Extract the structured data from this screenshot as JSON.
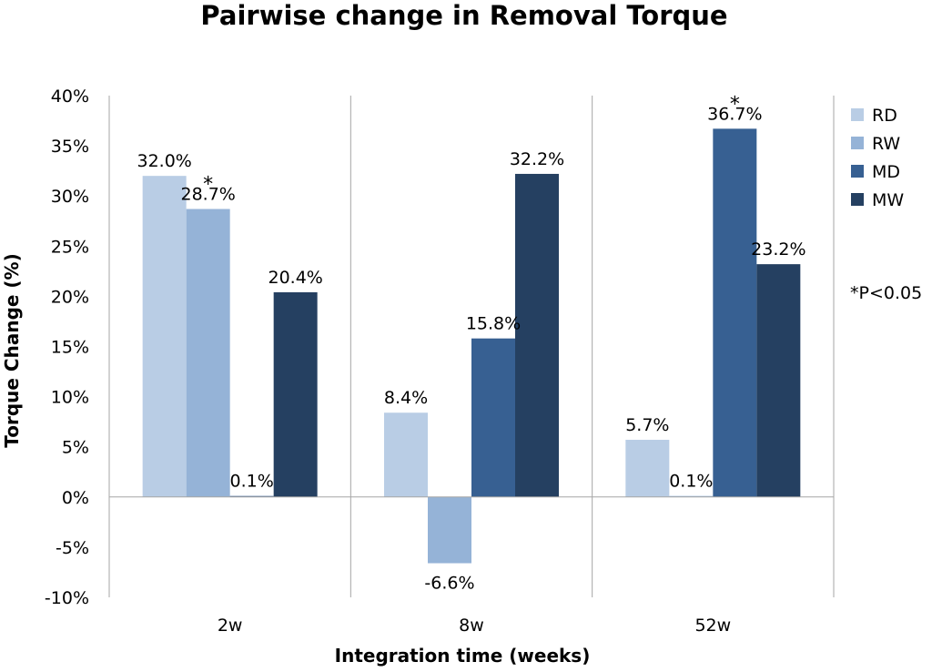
{
  "chart_data": {
    "type": "bar",
    "title": "Pairwise change in Removal Torque",
    "xlabel": "Integration time (weeks)",
    "ylabel": "Torque Change (%)",
    "categories": [
      "2w",
      "8w",
      "52w"
    ],
    "ylim": [
      -10,
      40
    ],
    "yticks": [
      -10,
      -5,
      0,
      5,
      10,
      15,
      20,
      25,
      30,
      35,
      40
    ],
    "ytick_labels": [
      "-10%",
      "-5%",
      "0%",
      "5%",
      "10%",
      "15%",
      "20%",
      "25%",
      "30%",
      "35%",
      "40%"
    ],
    "series": [
      {
        "name": "RD",
        "color": "#b9cde5",
        "values": [
          32.0,
          8.4,
          5.7
        ],
        "labels": [
          "32.0%",
          "8.4%",
          "5.7%"
        ]
      },
      {
        "name": "RW",
        "color": "#95b3d7",
        "values": [
          28.7,
          -6.6,
          0.1
        ],
        "labels": [
          "28.7%",
          "-6.6%",
          "0.1%"
        ]
      },
      {
        "name": "MD",
        "color": "#376092",
        "values": [
          0.1,
          15.8,
          36.7
        ],
        "labels": [
          "0.1%",
          "15.8%",
          "36.7%"
        ]
      },
      {
        "name": "MW",
        "color": "#254061",
        "values": [
          20.4,
          32.2,
          23.2
        ],
        "labels": [
          "20.4%",
          "32.2%",
          "23.2%"
        ]
      }
    ],
    "significance_marks": [
      {
        "series": "RW",
        "category": "2w",
        "mark": "*"
      },
      {
        "series": "MD",
        "category": "52w",
        "mark": "*"
      }
    ],
    "note": "*P<0.05",
    "legend_placement": "right",
    "grid": "vertical separators between categories"
  }
}
